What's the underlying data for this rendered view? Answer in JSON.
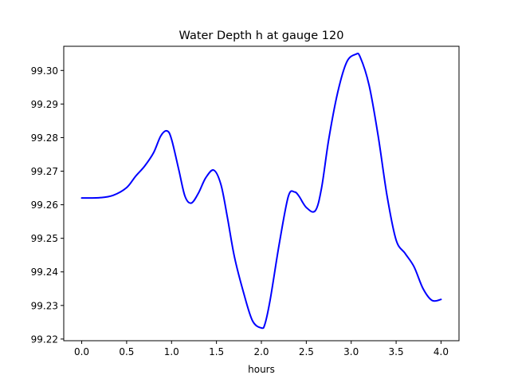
{
  "chart_data": {
    "type": "line",
    "title": "Water Depth h at gauge 120",
    "xlabel": "hours",
    "ylabel": "",
    "xlim": [
      -0.2,
      4.2
    ],
    "ylim": [
      99.2195,
      99.3072
    ],
    "xticks": [
      0.0,
      0.5,
      1.0,
      1.5,
      2.0,
      2.5,
      3.0,
      3.5,
      4.0
    ],
    "xtick_labels": [
      "0.0",
      "0.5",
      "1.0",
      "1.5",
      "2.0",
      "2.5",
      "3.0",
      "3.5",
      "4.0"
    ],
    "yticks": [
      99.22,
      99.23,
      99.24,
      99.25,
      99.26,
      99.27,
      99.28,
      99.29,
      99.3
    ],
    "ytick_labels": [
      "99.22",
      "99.23",
      "99.24",
      "99.25",
      "99.26",
      "99.27",
      "99.28",
      "99.29",
      "99.30"
    ],
    "grid": false,
    "legend": "none",
    "series": [
      {
        "color": "#0000ff",
        "x": [
          0.0,
          0.2,
          0.35,
          0.5,
          0.6,
          0.7,
          0.8,
          0.88,
          0.95,
          1.0,
          1.08,
          1.15,
          1.22,
          1.3,
          1.38,
          1.47,
          1.55,
          1.62,
          1.7,
          1.8,
          1.9,
          2.0,
          2.04,
          2.1,
          2.2,
          2.3,
          2.37,
          2.42,
          2.5,
          2.6,
          2.67,
          2.75,
          2.85,
          2.95,
          3.05,
          3.1,
          3.2,
          3.3,
          3.4,
          3.5,
          3.6,
          3.7,
          3.8,
          3.9,
          4.0
        ],
        "y": [
          99.262,
          99.2621,
          99.2628,
          99.2651,
          99.2685,
          99.2715,
          99.2755,
          99.2805,
          99.282,
          99.2795,
          99.2705,
          99.2625,
          99.2605,
          99.2635,
          99.268,
          99.2703,
          99.266,
          99.2565,
          99.2445,
          99.234,
          99.2255,
          99.2233,
          99.2245,
          99.232,
          99.2485,
          99.2625,
          99.2638,
          99.2625,
          99.2592,
          99.2582,
          99.265,
          99.2795,
          99.2935,
          99.3025,
          99.3048,
          99.304,
          99.2955,
          99.2805,
          99.2625,
          99.2495,
          99.2455,
          99.2415,
          99.235,
          99.2315,
          99.2318
        ]
      }
    ]
  }
}
